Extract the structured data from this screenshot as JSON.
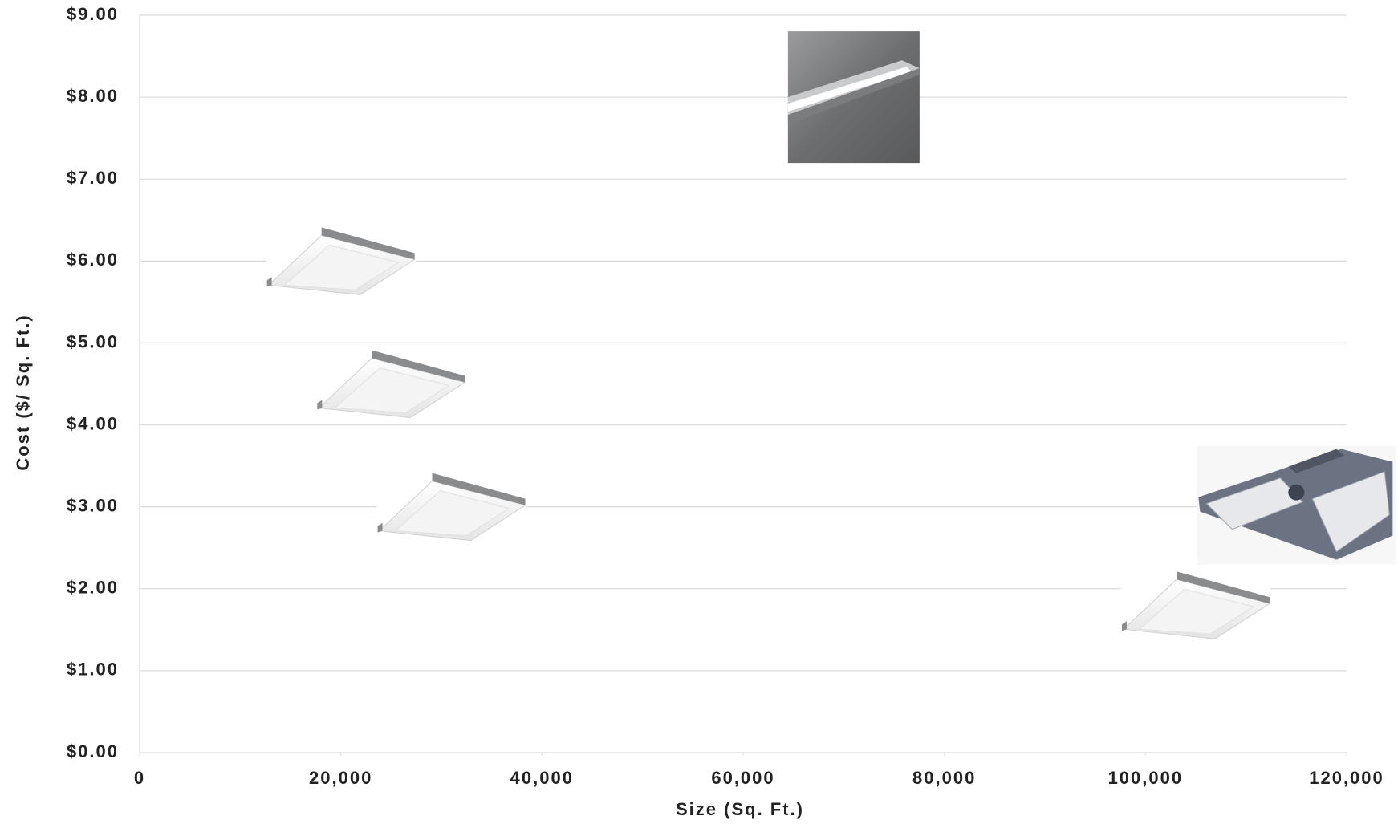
{
  "chart_data": {
    "type": "scatter",
    "x_label": "Size (Sq. Ft.)",
    "y_label": "Cost ($/ Sq. Ft.)",
    "x": [
      20000,
      25000,
      31000,
      71000,
      105000,
      115000
    ],
    "values": [
      6.0,
      4.5,
      3.0,
      8.0,
      1.8,
      3.0
    ],
    "markers": [
      "troffer",
      "troffer",
      "troffer",
      "linear-photo",
      "troffer",
      "high-bay"
    ],
    "xlim": [
      0,
      120000
    ],
    "xticks": [
      0,
      {
        "value": 20000,
        "label": "20,000"
      },
      {
        "value": 40000,
        "label": "40,000"
      },
      {
        "value": 60000,
        "label": "60,000"
      },
      {
        "value": 80000,
        "label": "80,000"
      },
      {
        "value": 100000,
        "label": "100,000"
      },
      {
        "value": 120000,
        "label": "120,000"
      }
    ],
    "ylim": [
      0,
      9
    ],
    "yticks": [
      {
        "value": 0,
        "label": "$0.00"
      },
      {
        "value": 1,
        "label": "$1.00"
      },
      {
        "value": 2,
        "label": "$2.00"
      },
      {
        "value": 3,
        "label": "$3.00"
      },
      {
        "value": 4,
        "label": "$4.00"
      },
      {
        "value": 5,
        "label": "$5.00"
      },
      {
        "value": 6,
        "label": "$6.00"
      },
      {
        "value": 7,
        "label": "$7.00"
      },
      {
        "value": 8,
        "label": "$8.00"
      },
      {
        "value": 9,
        "label": "$9.00"
      }
    ],
    "grid": true
  }
}
